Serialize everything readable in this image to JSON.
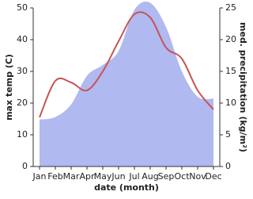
{
  "chart_data": {
    "type": "combo",
    "categories": [
      "Jan",
      "Feb",
      "Mar",
      "Apr",
      "May",
      "Jun",
      "Jul",
      "Aug",
      "Sep",
      "Oct",
      "Nov",
      "Dec"
    ],
    "x_label": "date (month)",
    "y_label": "max temp (C)",
    "y2_label": "med. precipitation (kg/m²)",
    "ylim": [
      0,
      50
    ],
    "yticks": [
      0,
      10,
      20,
      30,
      40,
      50
    ],
    "y2lim": [
      0,
      25
    ],
    "y2ticks": [
      0,
      5,
      10,
      15,
      20,
      25
    ],
    "series": [
      {
        "name": "precipitation",
        "type": "area",
        "axis": "y2",
        "color": "#b0b9f0",
        "values": [
          7.4,
          7.8,
          9.8,
          14.3,
          16,
          18.2,
          24.7,
          25.8,
          22,
          15,
          11,
          10.7
        ]
      },
      {
        "name": "temperature",
        "type": "line",
        "color": "#c75454",
        "values": [
          15.5,
          27,
          26.5,
          24,
          30,
          39.5,
          48,
          47,
          37.5,
          34,
          24,
          18
        ]
      }
    ]
  }
}
